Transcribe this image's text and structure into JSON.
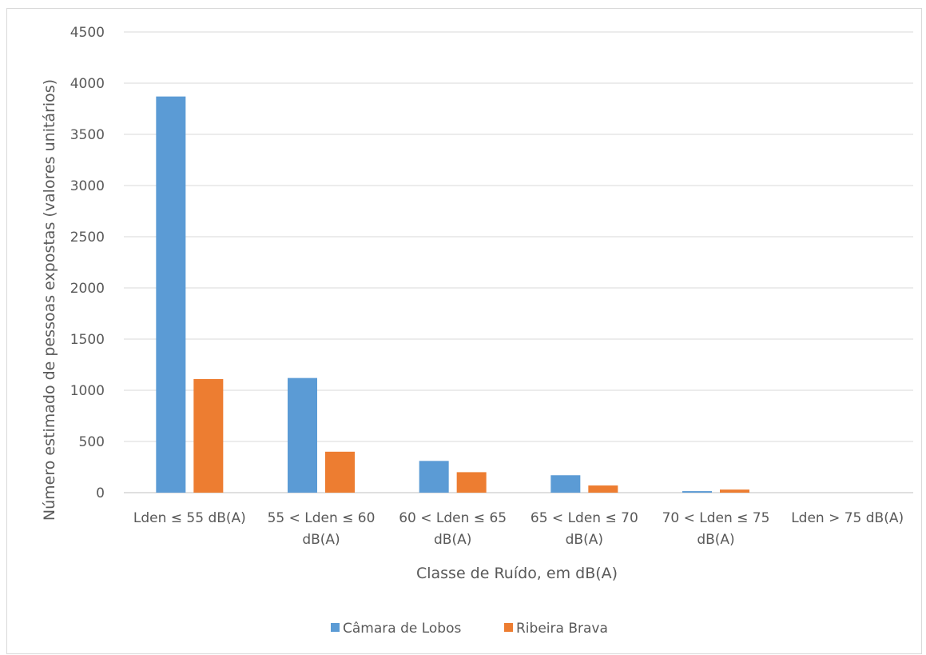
{
  "chart_data": {
    "type": "bar",
    "title": "",
    "xlabel": "Classe de Ruído, em dB(A)",
    "ylabel": "Número estimado de pessoas expostas (valores unitários)",
    "ylim": [
      0,
      4500
    ],
    "yticks": [
      0,
      500,
      1000,
      1500,
      2000,
      2500,
      3000,
      3500,
      4000,
      4500
    ],
    "categories": [
      [
        "Lden ≤ 55 dB(A)"
      ],
      [
        "55 < Lden ≤ 60",
        "dB(A)"
      ],
      [
        "60 < Lden ≤ 65",
        "dB(A)"
      ],
      [
        "65 < Lden ≤ 70",
        "dB(A)"
      ],
      [
        "70 < Lden ≤ 75",
        "dB(A)"
      ],
      [
        "Lden > 75 dB(A)"
      ]
    ],
    "series": [
      {
        "name": "Câmara de Lobos",
        "color": "#5b9bd5",
        "values": [
          3870,
          1120,
          310,
          170,
          15,
          0
        ]
      },
      {
        "name": "Ribeira Brava",
        "color": "#ed7d31",
        "values": [
          1110,
          400,
          200,
          70,
          30,
          0
        ]
      }
    ],
    "grid": true,
    "legend_position": "bottom"
  }
}
